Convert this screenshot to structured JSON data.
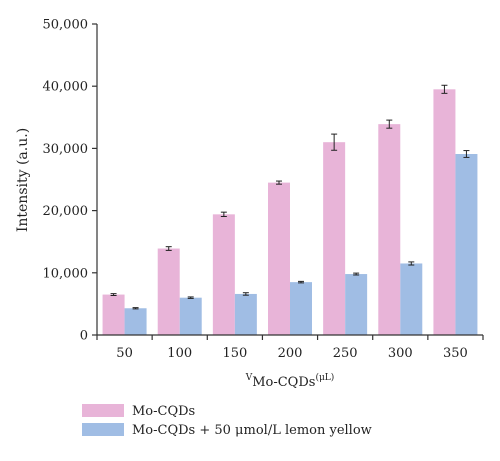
{
  "chart_data": {
    "type": "bar",
    "categories": [
      "50",
      "100",
      "150",
      "200",
      "250",
      "300",
      "350"
    ],
    "series": [
      {
        "name": "Mo-CQDs",
        "color": "#e8b4d8",
        "values": [
          6500,
          13900,
          19400,
          24500,
          31000,
          33900,
          39500
        ],
        "errors": [
          150,
          300,
          350,
          250,
          1300,
          650,
          650
        ]
      },
      {
        "name": "Mo-CQDs + 50 μmol/L lemon yellow",
        "color": "#a0bde4",
        "values": [
          4300,
          6000,
          6600,
          8500,
          9800,
          11500,
          29100
        ],
        "errors": [
          100,
          120,
          200,
          120,
          150,
          250,
          550
        ]
      }
    ],
    "ylim": [
      0,
      50000
    ],
    "yticks": [
      "0",
      "10,000",
      "20,000",
      "30,000",
      "40,000",
      "50,000"
    ],
    "ylabel": "Intensity (a.u.)",
    "xlabel": {
      "prefix": "V",
      "main": "Mo-CQDs",
      "suffix": "(μL)"
    },
    "legend_position": "bottom-left"
  }
}
